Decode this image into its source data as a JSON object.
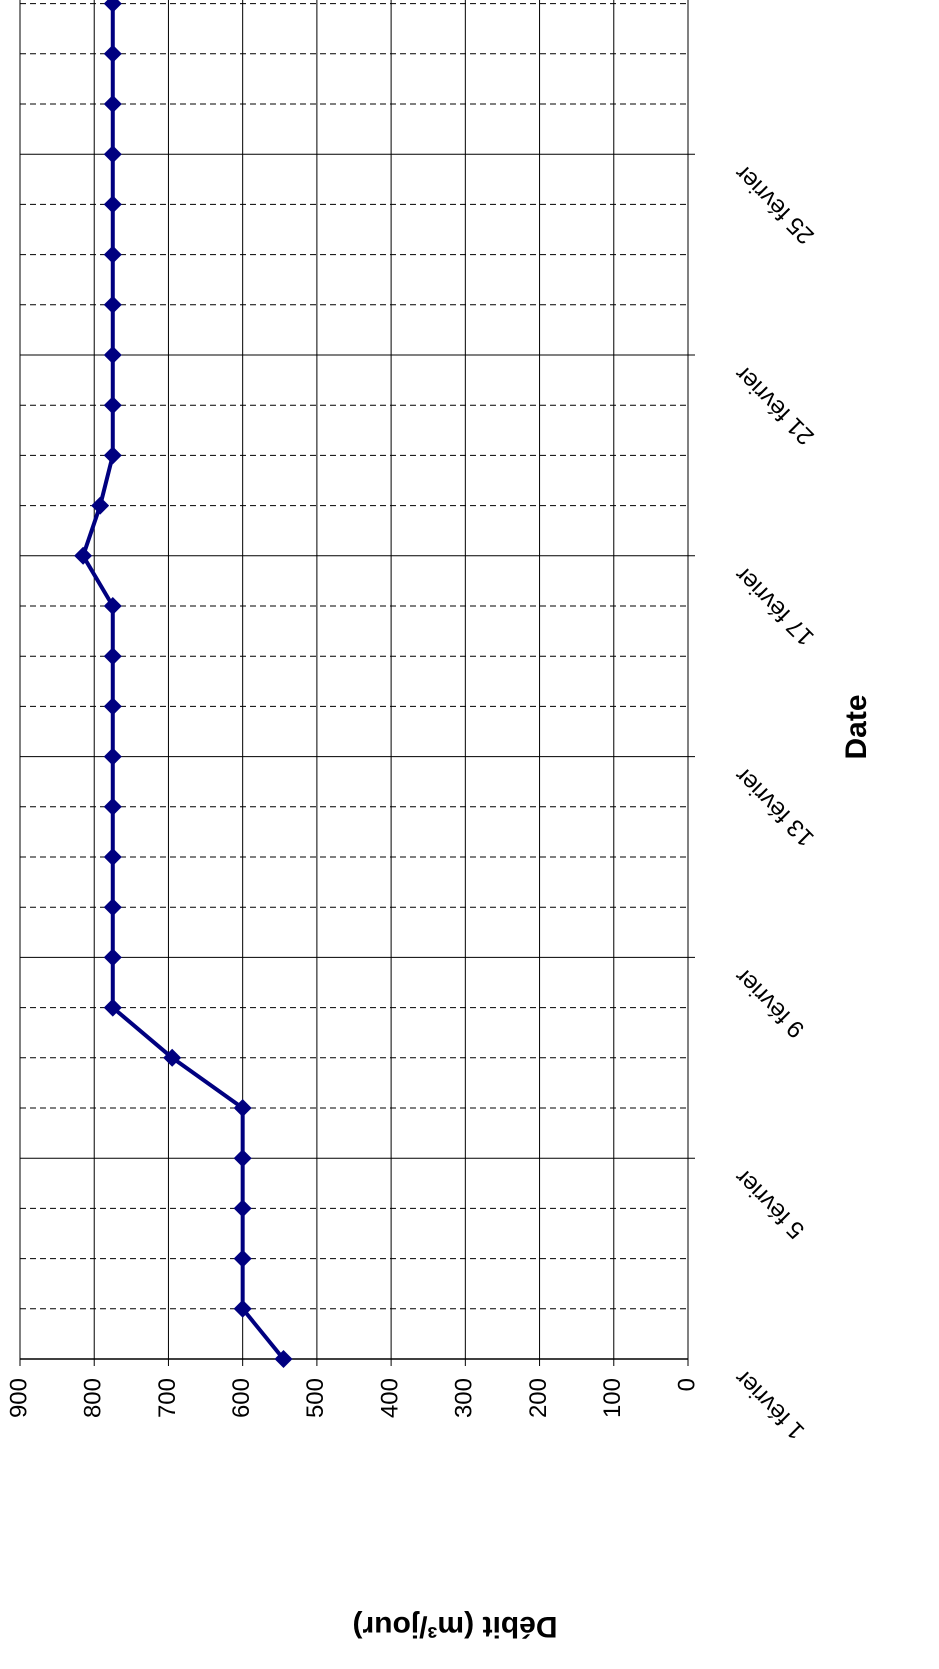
{
  "chart_data": {
    "type": "line",
    "x_label": "Date",
    "y_label": "Débit (m³/jour)",
    "categories": [
      "1 février",
      null,
      null,
      null,
      "5 février",
      null,
      null,
      null,
      "9 février",
      null,
      null,
      null,
      "13 février",
      null,
      null,
      null,
      "17 février",
      null,
      null,
      null,
      "21 février",
      null,
      null,
      null,
      "25 février",
      null,
      null,
      null
    ],
    "series": [
      {
        "name": "Débit",
        "color": "#000080",
        "values": [
          545,
          600,
          600,
          600,
          600,
          600,
          695,
          775,
          775,
          775,
          775,
          775,
          775,
          775,
          775,
          775,
          815,
          792,
          775,
          775,
          775,
          775,
          775,
          775,
          775,
          775,
          775,
          775
        ]
      }
    ],
    "ylim": [
      0,
      900
    ],
    "yticks": [
      0,
      100,
      200,
      300,
      400,
      500,
      600,
      700,
      800,
      900
    ],
    "grid": true
  }
}
